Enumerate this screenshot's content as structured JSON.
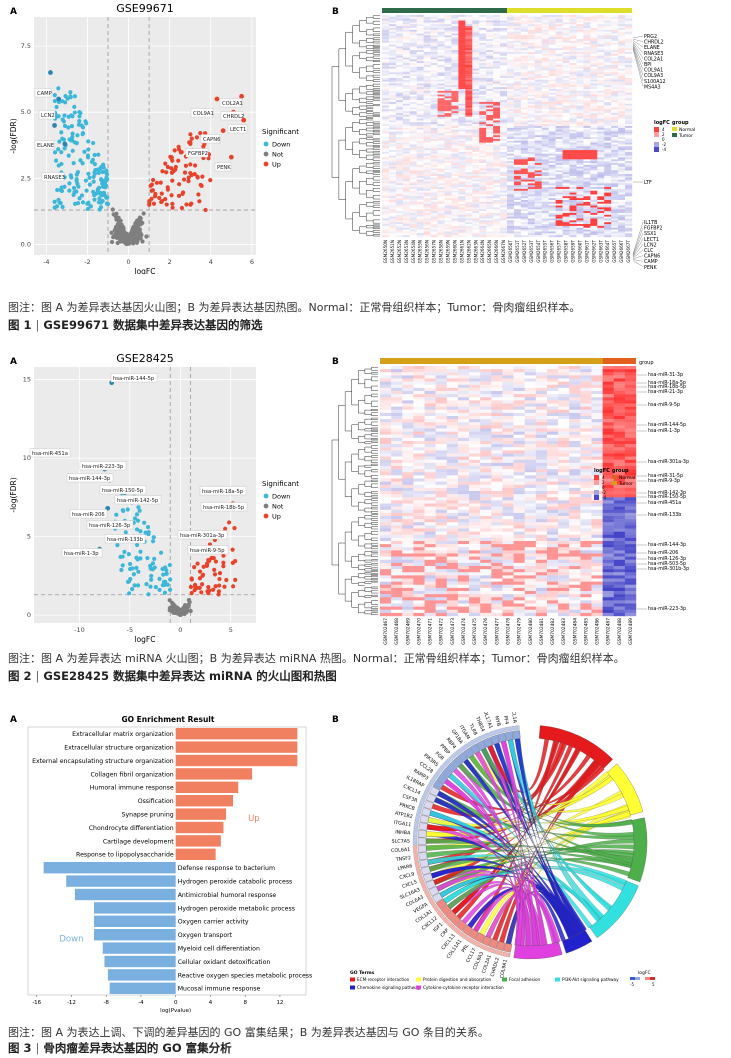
{
  "fig1": {
    "panel_a_letter": "A",
    "panel_b_letter": "B",
    "volcano": {
      "title": "GSE99671",
      "xlabel": "logFC",
      "ylabel": "-log(FDR)",
      "x_ticks": [
        "-4",
        "-2",
        "0",
        "2",
        "4",
        "6"
      ],
      "y_ticks": [
        "0.0",
        "2.5",
        "5.0",
        "7.5"
      ],
      "legend_title": "Significant",
      "legend_items": [
        "Down",
        "Not",
        "Up"
      ],
      "labels_down": [
        "CAMP",
        "LCN2",
        "ELANE",
        "RNASE3"
      ],
      "labels_up": [
        "COL2A1",
        "COL9A1",
        "CHRDL2",
        "CAPN6",
        "LECT1",
        "FGFBP2",
        "PENK"
      ]
    },
    "heatmap": {
      "genes_top": [
        "PRG2",
        "CHRDL2",
        "ELANE",
        "RNASE3",
        "COL2A1",
        "BPI",
        "COL9A1",
        "COL9A3",
        "S100A12",
        "MS4A3"
      ],
      "genes_mid": [
        "LTF"
      ],
      "genes_bottom": [
        "IL1TB",
        "FGFBP2",
        "SSX1",
        "LECT1",
        "LCN2",
        "CLC",
        "CAPN6",
        "CAMP",
        "PENK"
      ],
      "legend_logfc_title": "logFC",
      "legend_group_title": "group",
      "legend_group_items": [
        "Normal",
        "Tumor"
      ],
      "legend_ticks": [
        "4",
        "2",
        "0",
        "-2",
        "-4"
      ],
      "samples_normal": [
        "GSM2650N",
        "GSM2651N",
        "GSM2652N",
        "GSM2653N",
        "GSM2654N",
        "GSM2655N",
        "GSM2656N",
        "GSM2657N",
        "GSM2658N",
        "GSM2659N",
        "GSM2660N",
        "GSM2661N",
        "GSM2662N",
        "GSM2663N",
        "GSM2664N",
        "GSM2665N",
        "GSM2666N",
        "GSM2667N"
      ],
      "samples_tumor": [
        "GSM2650T",
        "GSM2651T",
        "GSM2652T",
        "GSM2653T",
        "GSM2654T",
        "GSM2655T",
        "GSM2656T",
        "GSM2657T",
        "GSM2658T",
        "GSM2659T",
        "GSM2660T",
        "GSM2661T",
        "GSM2662T",
        "GSM2663T",
        "GSM2664T",
        "GSM2665T",
        "GSM2666T",
        "GSM2667T"
      ]
    },
    "caption": "图注：图 A 为差异表达基因火山图；B 为差异表达基因热图。Normal：正常骨组织样本；Tumor：骨肉瘤组织样本。",
    "title_label": "图 1",
    "title_text": "GSE99671 数据集中差异表达基因的筛选"
  },
  "fig2": {
    "panel_a_letter": "A",
    "panel_b_letter": "B",
    "volcano": {
      "title": "GSE28425",
      "xlabel": "logFC",
      "ylabel": "-log(FDR)",
      "x_ticks": [
        "-10",
        "-5",
        "0",
        "5"
      ],
      "y_ticks": [
        "0",
        "5",
        "10",
        "15"
      ],
      "legend_title": "Significant",
      "legend_items": [
        "Down",
        "Not",
        "Up"
      ],
      "labels_down": [
        "hsa-miR-144-5p",
        "hsa-miR-451a",
        "hsa-miR-223-3p",
        "hsa-miR-144-3p",
        "hsa-miR-150-5p",
        "hsa-miR-142-5p",
        "hsa-miR-206",
        "hsa-miR-126-3p",
        "hsa-miR-133b",
        "hsa-miR-1-3p"
      ],
      "labels_up": [
        "hsa-miR-18a-5p",
        "hsa-miR-18b-5p",
        "hsa-miR-301a-3p",
        "hsa-miR-9-5p"
      ]
    },
    "heatmap": {
      "mirnas": [
        "hsa-miR-31-3p",
        "hsa-miR-18a-5p",
        "hsa-miR-18b-5p",
        "hsa-miR-21-3p",
        "hsa-miR-9-5p",
        "hsa-miR-144-5p",
        "hsa-miR-1-3p",
        "hsa-miR-301a-3p",
        "hsa-miR-31-5p",
        "hsa-miR-9-3p",
        "hsa-miR-142-3p",
        "hsa-miR-150-5p",
        "hsa-miR-451a",
        "hsa-miR-133b",
        "hsa-miR-144-3p",
        "hsa-miR-206",
        "hsa-miR-126-3p",
        "hsa-miR-503-5p",
        "hsa-miR-301b-3p",
        "hsa-miR-223-3p"
      ],
      "group_label": "group",
      "legend_logfc_title": "logFC",
      "legend_group_title": "group",
      "legend_group_items": [
        "Normal",
        "Tumor"
      ],
      "legend_ticks": [
        "4",
        "2",
        "0",
        "-2",
        "-4"
      ],
      "samples": [
        "GSM702467",
        "GSM702468",
        "GSM702469",
        "GSM702470",
        "GSM702471",
        "GSM702472",
        "GSM702473",
        "GSM702474",
        "GSM702475",
        "GSM702476",
        "GSM702477",
        "GSM702478",
        "GSM702479",
        "GSM702480",
        "GSM702481",
        "GSM702482",
        "GSM702483",
        "GSM702484",
        "GSM702485",
        "GSM702486",
        "GSM702487",
        "GSM702488",
        "GSM702489"
      ]
    },
    "caption": "图注：图 A 为差异表达 miRNA 火山图；B 为差异表达 miRNA 热图。Normal：正常骨组织样本；Tumor：骨肉瘤组织样本。",
    "title_label": "图 2",
    "title_text": "GSE28425 数据集中差异表达 miRNA 的火山图和热图"
  },
  "fig3": {
    "panel_a_letter": "A",
    "panel_b_letter": "B",
    "go_chart": {
      "title": "GO Enrichment Result",
      "xlabel": "log(Pvalue)",
      "x_ticks": [
        "-16",
        "-12",
        "-8",
        "-4",
        "0",
        "4",
        "8",
        "12"
      ],
      "up_label": "Up",
      "down_label": "Down",
      "up_terms": [
        {
          "name": "Extracellular matrix organization",
          "value": 14
        },
        {
          "name": "Extracellular structure organization",
          "value": 14
        },
        {
          "name": "External encapsulating structure organization",
          "value": 14
        },
        {
          "name": "Collagen fibril organization",
          "value": 8.8
        },
        {
          "name": "Humoral immune response",
          "value": 7.2
        },
        {
          "name": "Ossification",
          "value": 6.6
        },
        {
          "name": "Synapse pruning",
          "value": 5.8
        },
        {
          "name": "Chondrocyte differentiation",
          "value": 5.5
        },
        {
          "name": "Cartilage development",
          "value": 5.2
        },
        {
          "name": "Response to lipopolysaccharide",
          "value": 4.6
        }
      ],
      "down_terms": [
        {
          "name": "Defense response to bacterium",
          "value": -15.2
        },
        {
          "name": "Hydrogen peroxide catabolic process",
          "value": -12.6
        },
        {
          "name": "Antimicrobial humoral response",
          "value": -11.6
        },
        {
          "name": "Hydrogen peroxide metabolic process",
          "value": -9.4
        },
        {
          "name": "Oxygen carrier activity",
          "value": -9.4
        },
        {
          "name": "Oxygen transport",
          "value": -9.4
        },
        {
          "name": "Myeloid cell differentiation",
          "value": -8.4
        },
        {
          "name": "Cellular oxidant detoxification",
          "value": -8.2
        },
        {
          "name": "Reactive oxygen species metabolic process",
          "value": -7.8
        },
        {
          "name": "Mucosal immune response",
          "value": -7.6
        }
      ]
    },
    "chord": {
      "genes": [
        "COL9A1",
        "CHRDL2",
        "COL2A1",
        "COL9A3",
        "CCL17",
        "PRL",
        "COL11A1",
        "CXCL13",
        "CRP",
        "IGF1",
        "CXCL12",
        "COL1A1",
        "VEGFA",
        "COL6A3",
        "SLC16A3",
        "CXCL5",
        "CXCL9",
        "LPAR6",
        "TNSF2",
        "COL6A1",
        "SLC7A5",
        "INHBA",
        "ITGA11",
        "ATP1B2",
        "PRKCB",
        "CSF3R",
        "CXCL14",
        "IL18RAP",
        "RAMP3",
        "CCL28",
        "PIK3R5",
        "FGR",
        "PPBP",
        "RBP4",
        "GP1BA",
        "ITGAM",
        "TLR8",
        "THBS4",
        "COL17A1",
        "MYB",
        "PF4",
        "TCL1A"
      ],
      "legend_title": "GO Terms",
      "terms": [
        {
          "name": "ECM-receptor interaction",
          "color": "#e41a1c"
        },
        {
          "name": "Protein digestion and absorption",
          "color": "#ffff33"
        },
        {
          "name": "Focal adhesion",
          "color": "#4daf4a"
        },
        {
          "name": "PI3K-Akt signaling pathway",
          "color": "#33e0e0"
        },
        {
          "name": "Chemokine signaling pathway",
          "color": "#2222cc"
        },
        {
          "name": "Cytokine-cytokine receptor interaction",
          "color": "#e040e0"
        }
      ],
      "logfc_title": "logFC",
      "logfc_ticks": [
        "-5",
        "5"
      ]
    },
    "caption": "图注：图 A 为表达上调、下调的差异基因的 GO 富集结果；B 为差异表达基因与 GO 条目的关系。",
    "title_label": "图 3",
    "title_text": "骨肉瘤差异表达基因的 GO 富集分析"
  }
}
